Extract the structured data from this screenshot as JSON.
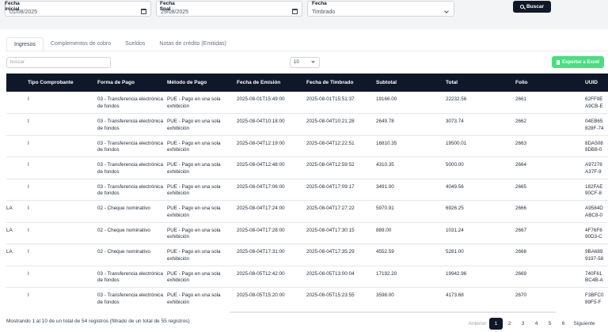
{
  "filters": {
    "start_label": "Fecha inicial",
    "start_value": "01/08/2025",
    "end_label": "Fecha final",
    "end_value": "29/08/2025",
    "type_label": "Fecha",
    "type_value": "Timbrado",
    "search_label": "Buscar"
  },
  "tabs": [
    {
      "label": "Ingresos",
      "active": true
    },
    {
      "label": "Complementos de cobro",
      "active": false
    },
    {
      "label": "Sueldos",
      "active": false
    },
    {
      "label": "Notas de crédito (Emitidas)",
      "active": false
    }
  ],
  "toolbar": {
    "search_placeholder": "buscar",
    "page_size": "10",
    "export_label": "Exportar a Excel"
  },
  "table": {
    "columns": [
      "",
      "Tipo Comprobante",
      "Forma de Pago",
      "Método de Pago",
      "Fecha de Emisión",
      "Fecha de Timbrado",
      "Subtotal",
      "Total",
      "Folio",
      "UUID"
    ],
    "rows": [
      [
        "",
        "I",
        "03 - Transferencia electrónica de fondos",
        "PUE - Pago en una sola exhibición",
        "2025-08-01T15:49:00",
        "2025-08-01T15:51:37",
        "19166.00",
        "22232.56",
        "2661",
        "62FF9E\nA9CB-E"
      ],
      [
        "",
        "I",
        "03 - Transferencia electrónica de fondos",
        "PUE - Pago en una sola exhibición",
        "2025-08-04T10:18:00",
        "2025-08-04T10:21:28",
        "2649.78",
        "3073.74",
        "2662",
        "04EB65\n828F-74"
      ],
      [
        "",
        "I",
        "03 - Transferencia electrónica de fondos",
        "PUE - Pago en una sola exhibición",
        "2025-08-04T12:19:00",
        "2025-08-04T12:22:51",
        "16810.35",
        "19500.01",
        "2663",
        "8DA508\n8DB8-0"
      ],
      [
        "",
        "I",
        "03 - Transferencia electrónica de fondos",
        "PUE - Pago en una sola exhibición",
        "2025-08-04T12:48:00",
        "2025-08-04T12:59:52",
        "4310.35",
        "5000.00",
        "2664",
        "A97278\nA37F-9"
      ],
      [
        "",
        "I",
        "03 - Transferencia electrónica de fondos",
        "PUE - Pago en una sola exhibición",
        "2025-08-04T17:06:00",
        "2025-08-04T17:09:17",
        "3491.00",
        "4049.56",
        "2665",
        "182FAE\n90CF-8"
      ],
      [
        "LA",
        "I",
        "02 - Cheque nominativo",
        "PUE - Pago en una sola exhibición",
        "2025-08-04T17:24:00",
        "2025-08-04T17:27:22",
        "5970.91",
        "6926.25",
        "2666",
        "A9584D\nABC8-0"
      ],
      [
        "LA",
        "I",
        "02 - Cheque nominativo",
        "PUE - Pago en una sola exhibición",
        "2025-08-04T17:28:00",
        "2025-08-04T17:30:15",
        "889.00",
        "1031.24",
        "2667",
        "4F76F6\n90D3-C"
      ],
      [
        "LA",
        "I",
        "02 - Cheque nominativo",
        "PUE - Pago en una sola exhibición",
        "2025-08-04T17:31:00",
        "2025-08-04T17:35:29",
        "4552.59",
        "5281.00",
        "2668",
        "9BA689\n9197-58"
      ],
      [
        "",
        "I",
        "03 - Transferencia electrónica de fondos",
        "PUE - Pago en una sola exhibición",
        "2025-08-05T12:42:00",
        "2025-08-05T13:00:04",
        "17192.20",
        "19942.96",
        "2669",
        "740F61\nBC4B-A"
      ],
      [
        "",
        "I",
        "03 - Transferencia electrónica de fondos",
        "PUE - Pago en una sola exhibición",
        "2025-08-05T15:20:00",
        "2025-08-05T15:23:55",
        "3598.00",
        "4173.68",
        "2670",
        "F3BFC0\n89F5-F"
      ]
    ]
  },
  "footer": {
    "info": "Mostrando 1 al 10 de un total de 54 registros (filtrado de un total de 55 registros)",
    "prev_label": "Anterior",
    "pages": [
      "1",
      "2",
      "3",
      "4",
      "5",
      "6"
    ],
    "active_page": "1",
    "next_label": "Siguiente"
  }
}
